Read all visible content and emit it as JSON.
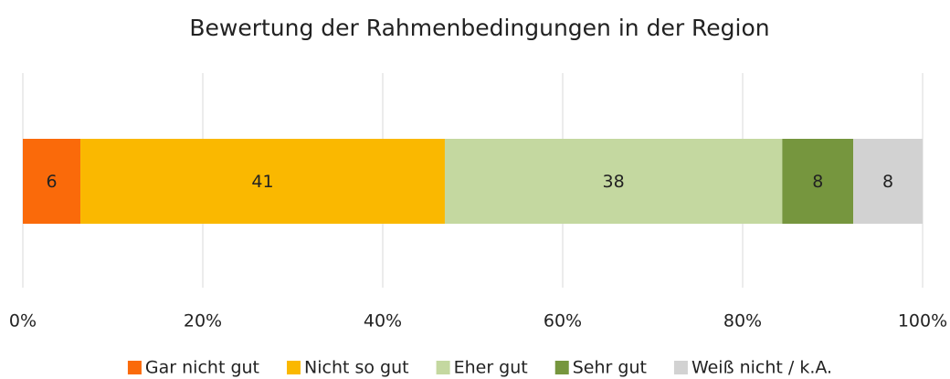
{
  "chart_data": {
    "type": "bar",
    "orientation": "horizontal",
    "stacked": true,
    "title": "Bewertung der Rahmenbedingungen in der Region",
    "categories": [
      null
    ],
    "series": [
      {
        "name": "Gar nicht gut",
        "color": "#fa6a0a",
        "values": [
          6.4
        ],
        "value_labels": [
          "6"
        ]
      },
      {
        "name": "Nicht so gut",
        "color": "#fab800",
        "values": [
          40.5
        ],
        "value_labels": [
          "41"
        ]
      },
      {
        "name": "Eher gut",
        "color": "#c4d8a0",
        "values": [
          37.5
        ],
        "value_labels": [
          "38"
        ]
      },
      {
        "name": "Sehr gut",
        "color": "#76963e",
        "values": [
          7.9
        ],
        "value_labels": [
          "8"
        ]
      },
      {
        "name": "Weiß nicht / k.A.",
        "color": "#d2d2d2",
        "values": [
          7.7
        ],
        "value_labels": [
          "8"
        ]
      }
    ],
    "xlim": [
      0,
      100
    ],
    "xticks": [
      {
        "value": 0,
        "label": "0%"
      },
      {
        "value": 20,
        "label": "20%"
      },
      {
        "value": 40,
        "label": "40%"
      },
      {
        "value": 60,
        "label": "60%"
      },
      {
        "value": 80,
        "label": "80%"
      },
      {
        "value": 100,
        "label": "100%"
      }
    ],
    "grid": true,
    "legend": "bottom"
  }
}
